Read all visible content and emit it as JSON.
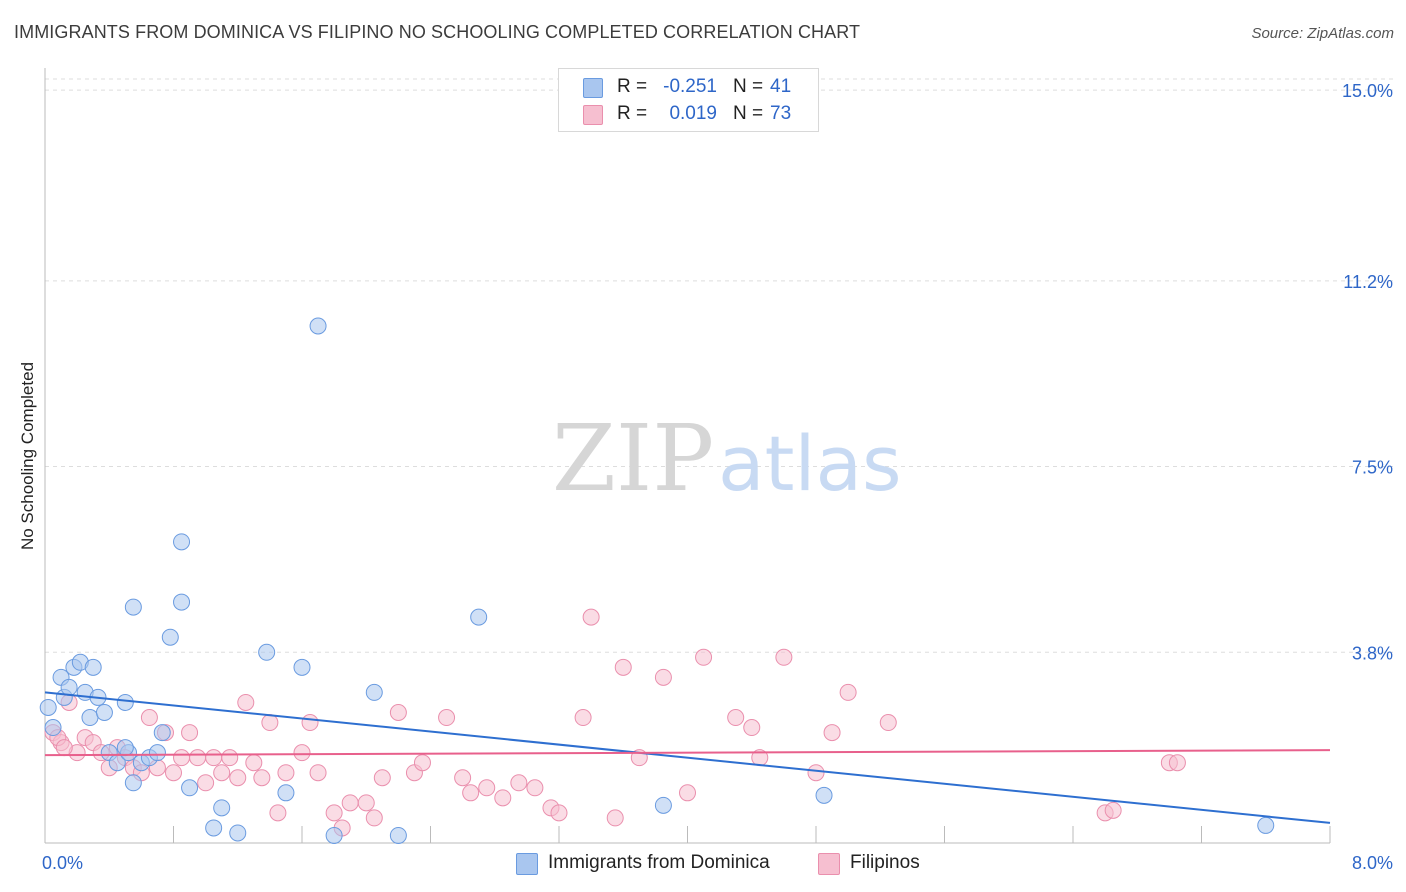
{
  "title": "IMMIGRANTS FROM DOMINICA VS FILIPINO NO SCHOOLING COMPLETED CORRELATION CHART",
  "source": "Source: ZipAtlas.com",
  "watermark": {
    "zip": "ZIP",
    "atlas": "atlas"
  },
  "legend": {
    "r_label": "R =",
    "n_label": "N =",
    "rows": [
      {
        "r": "-0.251",
        "n": "41"
      },
      {
        "r": "0.019",
        "n": "73"
      }
    ]
  },
  "colors": {
    "series1_fill": "#a9c6ef",
    "series1_stroke": "#6a9be0",
    "series1_line": "#2e6fd0",
    "series2_fill": "#f6bfd0",
    "series2_stroke": "#ea8fad",
    "series2_line": "#e8608c",
    "axis_label": "#2e66c8",
    "grid": "#dddddd"
  },
  "chart_data": {
    "type": "scatter",
    "title": "IMMIGRANTS FROM DOMINICA VS FILIPINO NO SCHOOLING COMPLETED CORRELATION CHART",
    "xlabel": "",
    "ylabel": "No Schooling Completed",
    "xlim": [
      0,
      8
    ],
    "ylim": [
      0,
      15.4
    ],
    "y_ticks": [
      3.8,
      7.5,
      11.2,
      15.0
    ],
    "y_tick_labels": [
      "3.8%",
      "7.5%",
      "11.2%",
      "15.0%"
    ],
    "x_tick_labels": [
      "0.0%",
      "8.0%"
    ],
    "grid": true,
    "legend_position": "top-center",
    "series": [
      {
        "name": "Immigrants from Dominica",
        "r": -0.251,
        "n": 41,
        "trend": [
          [
            0,
            3.0
          ],
          [
            8,
            0.4
          ]
        ],
        "points": [
          [
            0.02,
            2.7
          ],
          [
            0.05,
            2.3
          ],
          [
            0.1,
            3.3
          ],
          [
            0.12,
            2.9
          ],
          [
            0.15,
            3.1
          ],
          [
            0.18,
            3.5
          ],
          [
            0.22,
            3.6
          ],
          [
            0.25,
            3.0
          ],
          [
            0.28,
            2.5
          ],
          [
            0.3,
            3.5
          ],
          [
            0.33,
            2.9
          ],
          [
            0.37,
            2.6
          ],
          [
            0.4,
            1.8
          ],
          [
            0.45,
            1.6
          ],
          [
            0.5,
            2.8
          ],
          [
            0.52,
            1.8
          ],
          [
            0.55,
            1.2
          ],
          [
            0.6,
            1.6
          ],
          [
            0.65,
            1.7
          ],
          [
            0.7,
            1.8
          ],
          [
            0.73,
            2.2
          ],
          [
            0.55,
            4.7
          ],
          [
            0.85,
            4.8
          ],
          [
            0.9,
            1.1
          ],
          [
            0.85,
            6.0
          ],
          [
            0.78,
            4.1
          ],
          [
            1.05,
            0.3
          ],
          [
            1.1,
            0.7
          ],
          [
            1.2,
            0.2
          ],
          [
            1.38,
            3.8
          ],
          [
            1.5,
            1.0
          ],
          [
            1.6,
            3.5
          ],
          [
            1.7,
            10.3
          ],
          [
            1.8,
            0.15
          ],
          [
            2.05,
            3.0
          ],
          [
            2.2,
            0.15
          ],
          [
            2.7,
            4.5
          ],
          [
            3.85,
            0.75
          ],
          [
            4.85,
            0.95
          ],
          [
            7.6,
            0.35
          ],
          [
            0.5,
            1.9
          ]
        ]
      },
      {
        "name": "Filipinos",
        "r": 0.019,
        "n": 73,
        "trend": [
          [
            0,
            1.75
          ],
          [
            8,
            1.85
          ]
        ],
        "points": [
          [
            0.05,
            2.2
          ],
          [
            0.1,
            2.0
          ],
          [
            0.15,
            2.8
          ],
          [
            0.2,
            1.8
          ],
          [
            0.25,
            2.1
          ],
          [
            0.3,
            2.0
          ],
          [
            0.35,
            1.8
          ],
          [
            0.4,
            1.5
          ],
          [
            0.45,
            1.9
          ],
          [
            0.5,
            1.7
          ],
          [
            0.55,
            1.5
          ],
          [
            0.6,
            1.4
          ],
          [
            0.65,
            2.5
          ],
          [
            0.7,
            1.5
          ],
          [
            0.75,
            2.2
          ],
          [
            0.8,
            1.4
          ],
          [
            0.85,
            1.7
          ],
          [
            0.9,
            2.2
          ],
          [
            0.95,
            1.7
          ],
          [
            1.0,
            1.2
          ],
          [
            1.05,
            1.7
          ],
          [
            1.1,
            1.4
          ],
          [
            1.15,
            1.7
          ],
          [
            1.2,
            1.3
          ],
          [
            1.25,
            2.8
          ],
          [
            1.3,
            1.6
          ],
          [
            1.35,
            1.3
          ],
          [
            1.4,
            2.4
          ],
          [
            1.5,
            1.4
          ],
          [
            1.6,
            1.8
          ],
          [
            1.65,
            2.4
          ],
          [
            1.7,
            1.4
          ],
          [
            1.8,
            0.6
          ],
          [
            1.85,
            0.3
          ],
          [
            1.9,
            0.8
          ],
          [
            2.0,
            0.8
          ],
          [
            2.1,
            1.3
          ],
          [
            2.2,
            2.6
          ],
          [
            2.3,
            1.4
          ],
          [
            2.35,
            1.6
          ],
          [
            2.5,
            2.5
          ],
          [
            2.6,
            1.3
          ],
          [
            2.65,
            1.0
          ],
          [
            2.75,
            1.1
          ],
          [
            2.85,
            0.9
          ],
          [
            2.95,
            1.2
          ],
          [
            3.05,
            1.1
          ],
          [
            3.15,
            0.7
          ],
          [
            3.2,
            0.6
          ],
          [
            3.35,
            2.5
          ],
          [
            3.4,
            4.5
          ],
          [
            3.55,
            0.5
          ],
          [
            3.6,
            3.5
          ],
          [
            3.7,
            1.7
          ],
          [
            3.85,
            3.3
          ],
          [
            4.0,
            1.0
          ],
          [
            4.1,
            3.7
          ],
          [
            4.3,
            2.5
          ],
          [
            4.4,
            2.3
          ],
          [
            4.45,
            1.7
          ],
          [
            4.6,
            3.7
          ],
          [
            4.8,
            1.4
          ],
          [
            4.9,
            2.2
          ],
          [
            5.0,
            3.0
          ],
          [
            5.25,
            2.4
          ],
          [
            6.6,
            0.6
          ],
          [
            6.65,
            0.65
          ],
          [
            7.0,
            1.6
          ],
          [
            7.05,
            1.6
          ],
          [
            0.08,
            2.1
          ],
          [
            0.12,
            1.9
          ],
          [
            1.45,
            0.6
          ],
          [
            2.05,
            0.5
          ]
        ]
      }
    ]
  }
}
